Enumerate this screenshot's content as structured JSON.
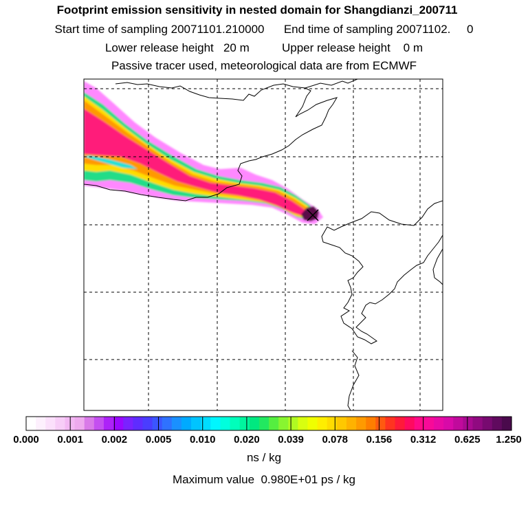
{
  "header": {
    "title": "Footprint emission sensitivity in nested domain for Shangdianzi_200711",
    "line2": "Start time of sampling 20071101.210000      End time of sampling 20071102.     0",
    "line3": "Lower release height   20 m          Upper release height    0 m",
    "line4": "Passive tracer used, meteorological data are from ECMWF"
  },
  "map": {
    "colors": {
      "coastline": "#000000",
      "grid": "#000000",
      "plume_outer": "#ff88ff",
      "plume_green": "#22dd88",
      "plume_yellow": "#ffdd00",
      "plume_orange": "#ff9900",
      "plume_core": "#ff1a7a",
      "plume_max": "#5a0a4a"
    },
    "station_marker": "x-icon"
  },
  "colorbar": {
    "tick_labels": [
      "0.000",
      "0.001",
      "0.002",
      "0.005",
      "0.010",
      "0.020",
      "0.039",
      "0.078",
      "0.156",
      "0.312",
      "0.625",
      "1.250"
    ],
    "colors": [
      "#ffffff",
      "#fdf0fd",
      "#fbe0fb",
      "#f7cdf7",
      "#f3b8f3",
      "#eeaaee",
      "#d97ae8",
      "#c44ff0",
      "#ad22f8",
      "#9a08ff",
      "#7a22ff",
      "#5f2cff",
      "#4a3dff",
      "#3b55ff",
      "#2f72ff",
      "#1a90ff",
      "#00aaff",
      "#00c4ff",
      "#00ddff",
      "#00f6ff",
      "#00ffdd",
      "#00ffbb",
      "#00f59e",
      "#00e880",
      "#22e860",
      "#55ee40",
      "#88f530",
      "#b0fa22",
      "#d8ff10",
      "#f0ff00",
      "#ffee00",
      "#ffdc00",
      "#ffc800",
      "#ffb200",
      "#ff9a00",
      "#ff7e00",
      "#ff5a10",
      "#ff3420",
      "#ff1a3a",
      "#ff0a60",
      "#ff0a88",
      "#f80a98",
      "#e80aa4",
      "#d80aa8",
      "#c00a9c",
      "#a80a90",
      "#900a80",
      "#780a70",
      "#600a5e",
      "#4a0a4c"
    ]
  },
  "units": "ns / kg",
  "max_value": "Maximum value  0.980E+01 ps / kg"
}
